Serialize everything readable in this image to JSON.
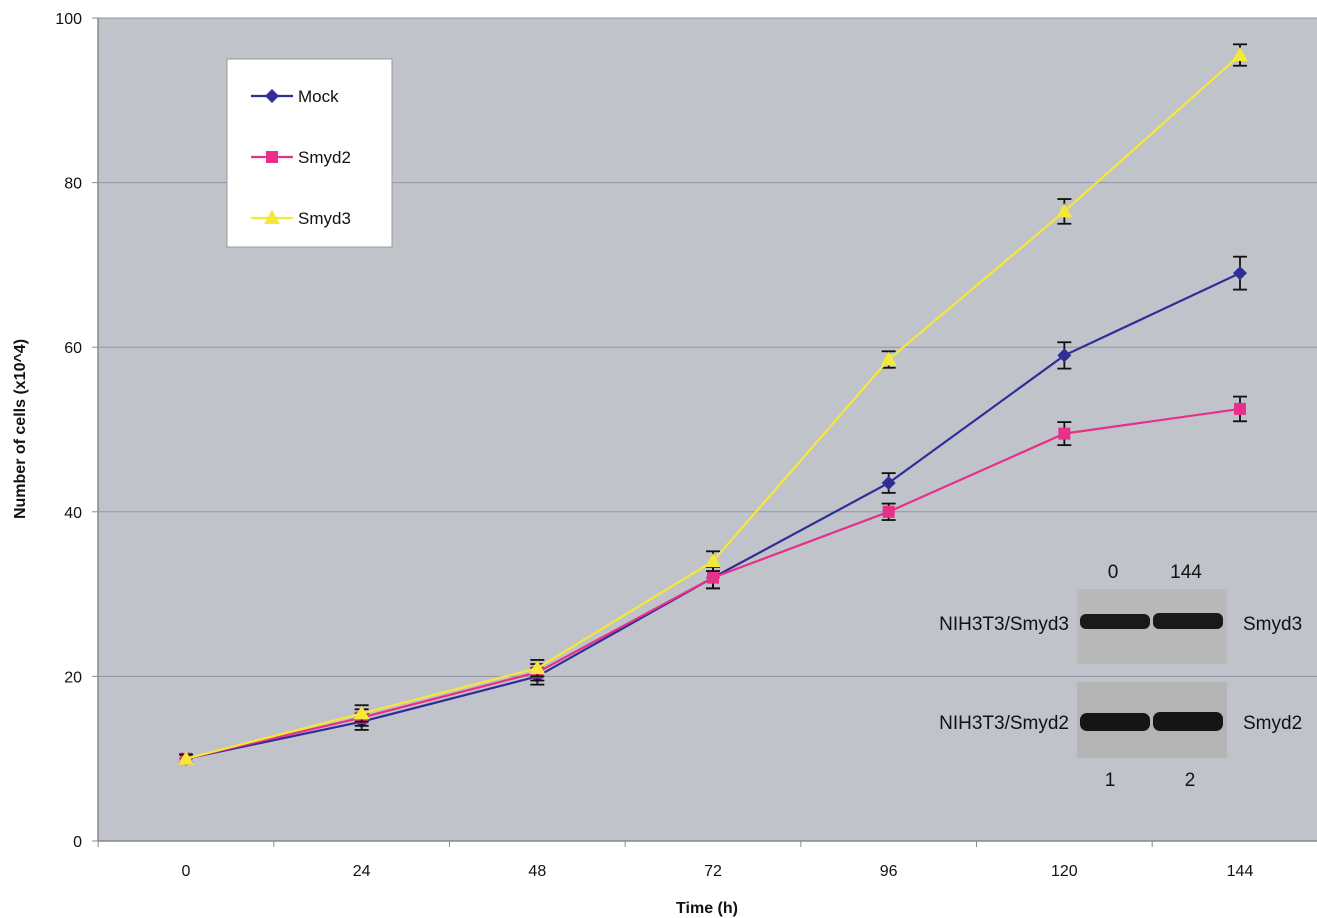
{
  "chart_data": {
    "type": "line",
    "xlabel": "Time (h)",
    "ylabel": "Number of cells (x10^4)",
    "x": [
      0,
      24,
      48,
      72,
      96,
      120,
      144
    ],
    "xlim": [
      0,
      144
    ],
    "ylim": [
      0,
      100
    ],
    "yticks": [
      0,
      20,
      40,
      60,
      80,
      100
    ],
    "grid": true,
    "legend_position": "top-left",
    "series": [
      {
        "name": "Mock",
        "color": "#2e2e96",
        "marker": "diamond",
        "values": [
          10,
          14.5,
          20,
          32,
          43.5,
          59,
          69
        ],
        "errors": [
          0.5,
          1.0,
          1.0,
          1.3,
          1.2,
          1.6,
          2.0
        ]
      },
      {
        "name": "Smyd2",
        "color": "#e6308a",
        "marker": "square",
        "values": [
          10,
          15,
          20.5,
          32,
          40,
          49.5,
          52.5
        ],
        "errors": [
          0.5,
          1.0,
          1.0,
          1.3,
          1.0,
          1.4,
          1.5
        ]
      },
      {
        "name": "Smyd3",
        "color": "#f4e83a",
        "marker": "triangle",
        "values": [
          10,
          15.5,
          21,
          34,
          58.5,
          76.5,
          95.5
        ],
        "errors": [
          0.5,
          1.0,
          1.0,
          1.2,
          1.0,
          1.5,
          1.3
        ]
      }
    ]
  },
  "inset": {
    "time_labels": [
      "0",
      "144"
    ],
    "rows": [
      {
        "cell_line": "NIH3T3/Smyd3",
        "protein": "Smyd3"
      },
      {
        "cell_line": "NIH3T3/Smyd2",
        "protein": "Smyd2"
      }
    ],
    "lane_labels": [
      "1",
      "2"
    ]
  }
}
